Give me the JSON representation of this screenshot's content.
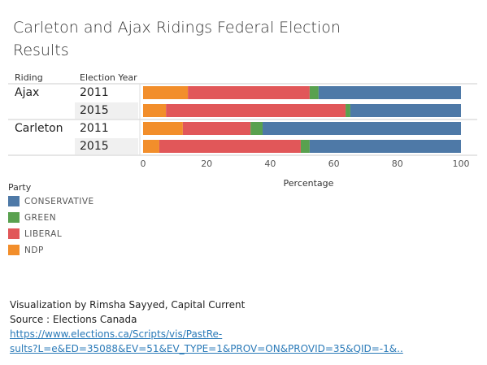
{
  "chart_data": {
    "type": "stacked_barh",
    "title": "Carleton and Ajax Ridings Federal Election Results",
    "row_header": "Riding",
    "category_header": "Election Year",
    "groups": [
      {
        "name": "Ajax",
        "categories": [
          "2011",
          "2015"
        ]
      },
      {
        "name": "Carleton",
        "categories": [
          "2011",
          "2015"
        ]
      }
    ],
    "series": [
      {
        "name": "CONSERVATIVE",
        "color": "#4e79a7",
        "values": [
          44.8,
          34.8,
          62.4,
          47.6
        ]
      },
      {
        "name": "GREEN",
        "color": "#59a14f",
        "values": [
          2.8,
          1.5,
          3.8,
          2.8
        ]
      },
      {
        "name": "LIBERAL",
        "color": "#e15759",
        "values": [
          38.3,
          56.5,
          21.3,
          44.5
        ]
      },
      {
        "name": "NDP",
        "color": "#f28e2b",
        "values": [
          14.1,
          7.2,
          12.5,
          5.1
        ]
      }
    ],
    "xlabel": "Percentage",
    "xlim": [
      0,
      100
    ],
    "xticks": [
      0,
      20,
      40,
      60,
      80,
      100
    ],
    "legend_title": "Party",
    "footer": {
      "credit": "Visualization by Rimsha Sayyed, Capital Current",
      "source": "Source : Elections Canada",
      "link_lines": [
        "https://www.elections.ca/Scripts/vis/PastRe-",
        "sults?L=e&ED=35088&EV=51&EV_TYPE=1&PROV=ON&PROVID=35&QID=-1&.."
      ]
    }
  }
}
